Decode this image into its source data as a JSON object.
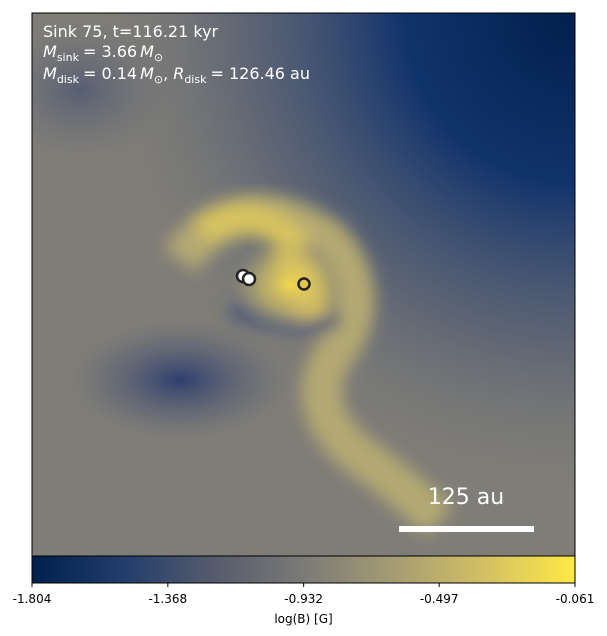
{
  "chart_data": {
    "type": "image",
    "annotations": [
      {
        "text": "Sink 75, t=116.21 kyr"
      },
      {
        "parts": [
          "M",
          "sink",
          "= 3.66",
          "M",
          "⊙"
        ]
      },
      {
        "parts": [
          "M",
          "disk",
          "= 0.14",
          "M",
          "⊙",
          ",",
          "R",
          "disk",
          "= 126.46 au"
        ]
      }
    ],
    "scale_bar": "125 au",
    "colorbar": {
      "label": "log(B) [G]",
      "colormap": "cividis",
      "lim": [
        -1.804,
        -0.061
      ],
      "ticks": [
        -1.804,
        -1.368,
        -0.932,
        -0.497,
        -0.061
      ]
    }
  }
}
